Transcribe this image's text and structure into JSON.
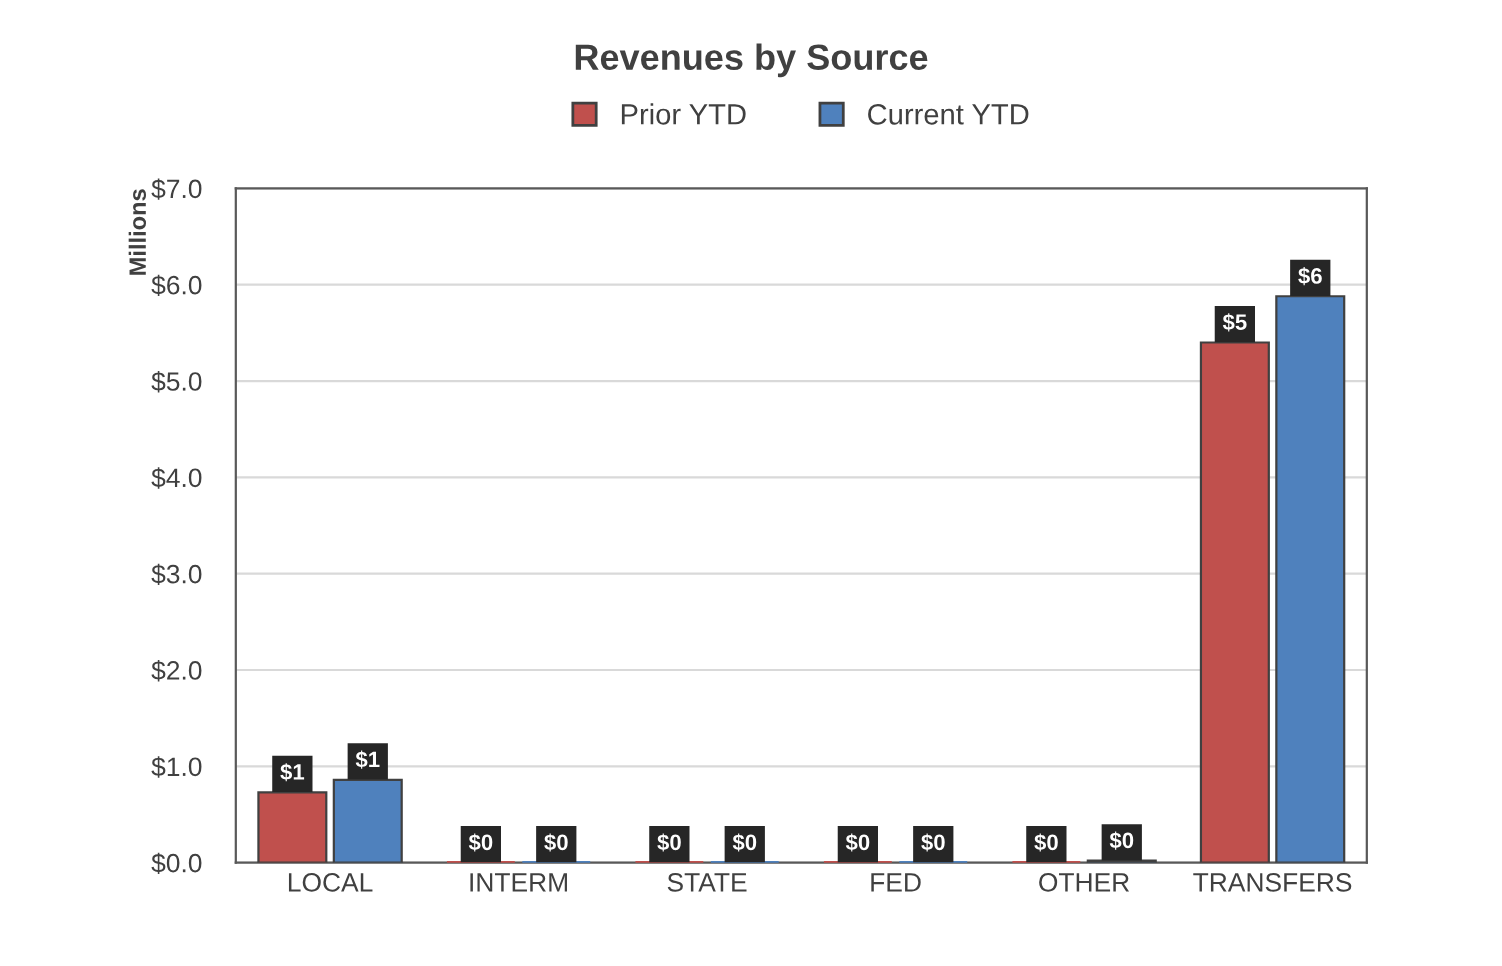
{
  "chart_data": {
    "type": "bar",
    "title": "Revenues by Source",
    "ylabel": "Millions",
    "categories": [
      "LOCAL",
      "INTERM",
      "STATE",
      "FED",
      "OTHER",
      "TRANSFERS"
    ],
    "series": [
      {
        "name": "Prior YTD",
        "color": "#c0504d",
        "values": [
          0.73,
          0,
          0,
          0,
          0,
          5.4
        ],
        "value_labels": [
          "$1",
          "$0",
          "$0",
          "$0",
          "$0",
          "$5"
        ]
      },
      {
        "name": "Current YTD",
        "color": "#4f81bd",
        "values": [
          0.86,
          0,
          0,
          0,
          0.02,
          5.88
        ],
        "value_labels": [
          "$1",
          "$0",
          "$0",
          "$0",
          "$0",
          "$6"
        ]
      }
    ],
    "ylim": [
      0,
      7
    ],
    "yticks": [
      {
        "value": 0,
        "label": "$0.0"
      },
      {
        "value": 1,
        "label": "$1.0"
      },
      {
        "value": 2,
        "label": "$2.0"
      },
      {
        "value": 3,
        "label": "$3.0"
      },
      {
        "value": 4,
        "label": "$4.0"
      },
      {
        "value": 5,
        "label": "$5.0"
      },
      {
        "value": 6,
        "label": "$6.0"
      },
      {
        "value": 7,
        "label": "$7.0"
      }
    ],
    "grid": "y",
    "legend": "top"
  }
}
